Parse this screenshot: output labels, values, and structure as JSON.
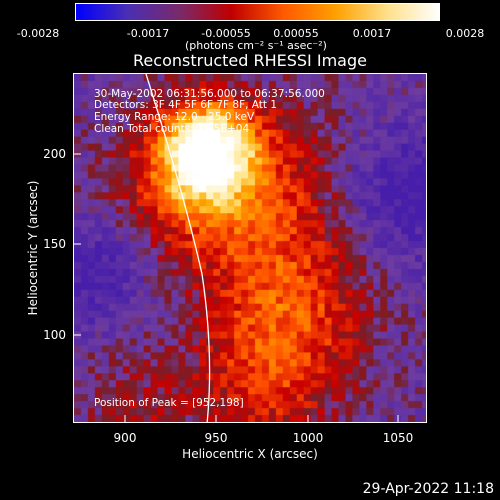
{
  "colorbar": {
    "ticks": [
      "-0.0028",
      "-0.0017",
      "-0.00055",
      "0.00055",
      "0.0017",
      "0.0028"
    ],
    "unit_label": "(photons cm⁻² s⁻¹ asec⁻²)",
    "colors": [
      "#0000ff",
      "#4b2fb3",
      "#7a2a6a",
      "#c00000",
      "#ff5a00",
      "#ffa000",
      "#ffe08a",
      "#ffffff"
    ]
  },
  "title": "Reconstructed RHESSI Image",
  "annotations": {
    "time": "30-May-2002 06:31:56.000 to 06:37:56.000",
    "detectors": "Detectors: 3F 4F 5F 6F 7F 8F, Att 1",
    "energy": "Energy Range: 12.0 - 25.0 keV",
    "method": "Clean     Total counts: 1.35E+04",
    "peak": "Position of Peak = [952,198]"
  },
  "axes": {
    "xlabel": "Heliocentric X (arcsec)",
    "ylabel": "Heliocentric Y (arcsec)",
    "xticks": [
      "900",
      "950",
      "1000",
      "1050"
    ],
    "yticks": [
      "200",
      "150",
      "100"
    ],
    "xrange": [
      872,
      1066
    ],
    "yrange": [
      47,
      239
    ]
  },
  "timestamp": "29-Apr-2022 11:18",
  "image_data": {
    "peak_position": [
      952,
      198
    ],
    "limb_visible": true
  }
}
